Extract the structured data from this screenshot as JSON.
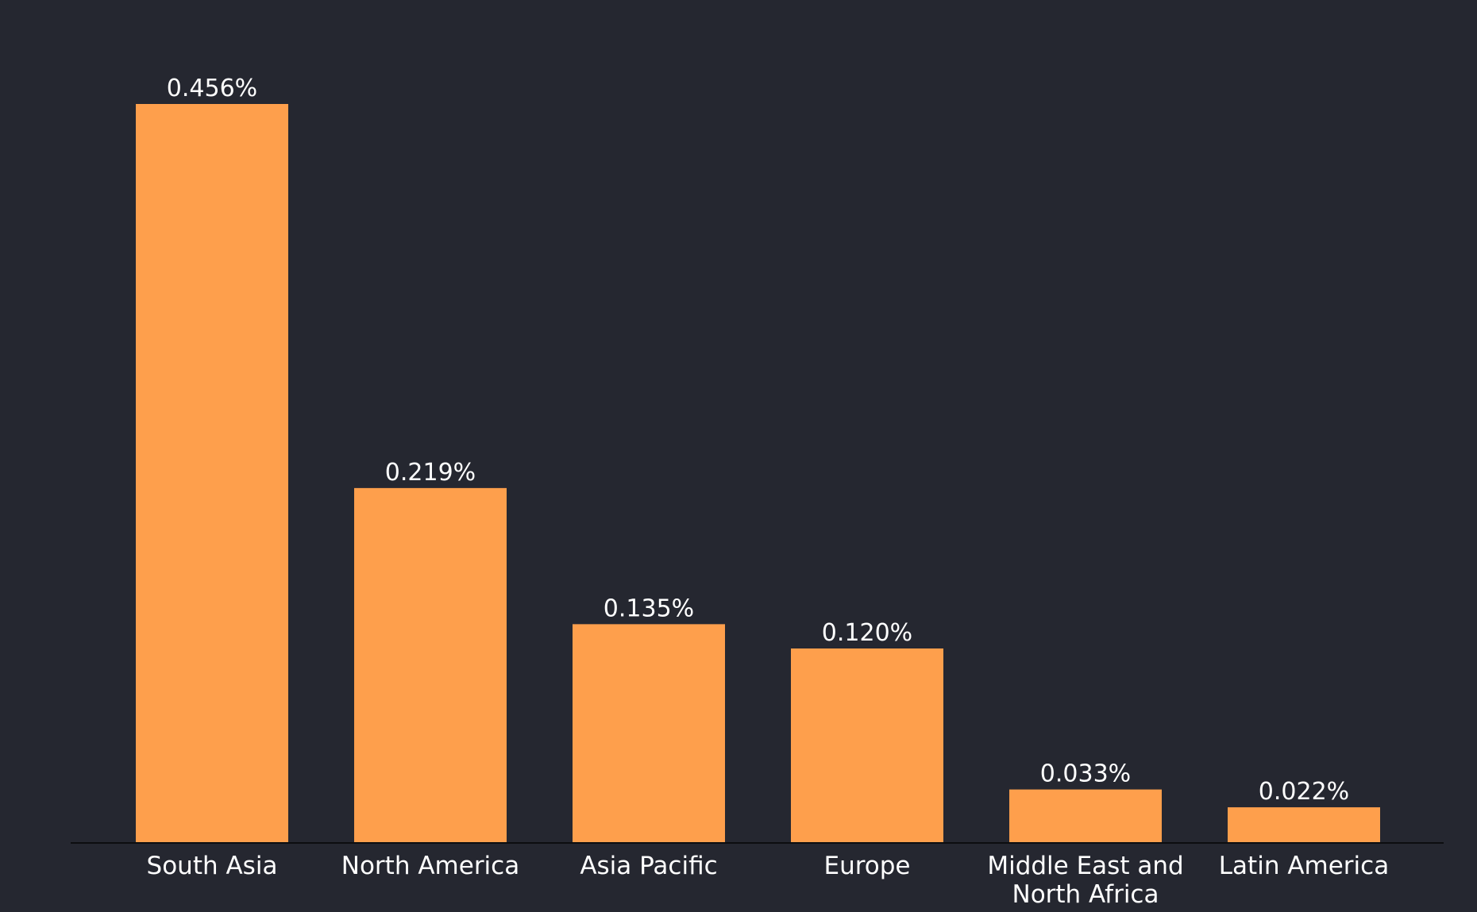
{
  "colors": {
    "background": "#252730",
    "bar": "#FE9F4C",
    "axis": "#0c0d10",
    "text": "#ffffff"
  },
  "chart_data": {
    "type": "bar",
    "categories": [
      "South Asia",
      "North America",
      "Asia Pacific",
      "Europe",
      "Middle East and North Africa",
      "Latin America"
    ],
    "category_label_lines": [
      [
        "South Asia"
      ],
      [
        "North America"
      ],
      [
        "Asia Pacific"
      ],
      [
        "Europe"
      ],
      [
        "Middle East and",
        "North Africa"
      ],
      [
        "Latin America"
      ]
    ],
    "values": [
      0.456,
      0.219,
      0.135,
      0.12,
      0.033,
      0.022
    ],
    "value_labels": [
      "0.456%",
      "0.219%",
      "0.135%",
      "0.120%",
      "0.033%",
      "0.022%"
    ],
    "title": "",
    "xlabel": "",
    "ylabel": "",
    "ylim": [
      0,
      0.456
    ],
    "grid": false,
    "legend": "none"
  }
}
